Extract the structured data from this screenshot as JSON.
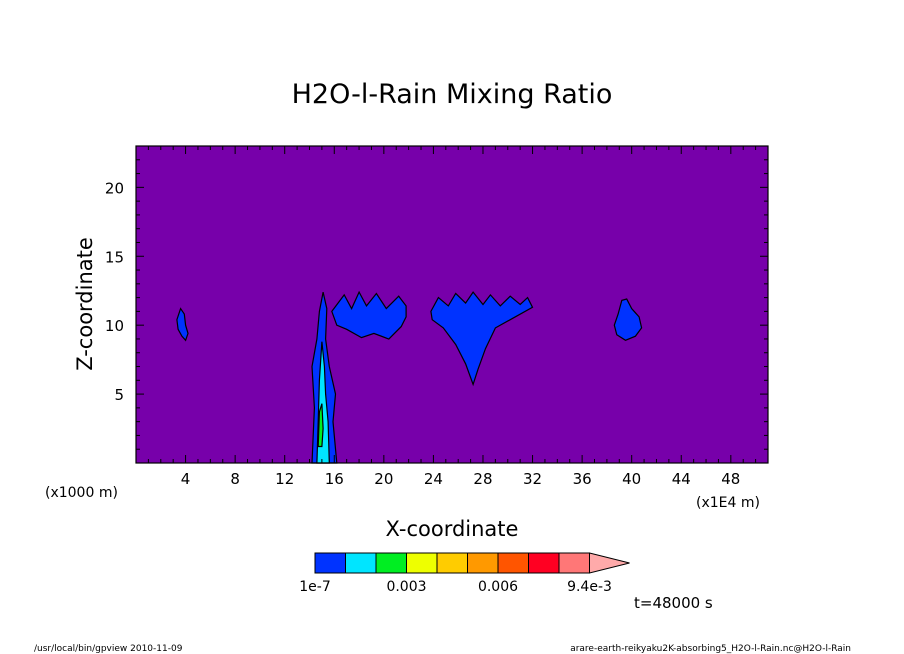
{
  "chart_data": {
    "type": "contour",
    "title": "H2O-l-Rain Mixing Ratio",
    "xlabel": "X-coordinate",
    "ylabel": "Z-coordinate",
    "x_unit_left": "(x1000 m)",
    "x_unit_right": "(x1E4 m)",
    "xlim": [
      0,
      51
    ],
    "ylim": [
      0,
      23
    ],
    "x_ticks": [
      4,
      8,
      12,
      16,
      20,
      24,
      28,
      32,
      36,
      40,
      44,
      48
    ],
    "y_ticks": [
      5,
      10,
      15,
      20
    ],
    "background_color": "#7700aa",
    "colorbar": {
      "colors": [
        "#0033ff",
        "#00e5ff",
        "#00ee22",
        "#eeff00",
        "#ffcc00",
        "#ff9900",
        "#ff5500",
        "#ff0022",
        "#ff7777"
      ],
      "extend_color": "#ffaaaa",
      "labels": [
        "1e-7",
        "0.003",
        "0.006",
        "9.4e-3"
      ]
    },
    "time_label": "t=48000 s",
    "regions": [
      {
        "name": "cloud-x4",
        "color": "#0033ff",
        "polygon": [
          [
            3.6,
            11.2
          ],
          [
            3.3,
            10.4
          ],
          [
            3.4,
            9.7
          ],
          [
            3.7,
            9.2
          ],
          [
            4.0,
            8.9
          ],
          [
            4.2,
            9.4
          ],
          [
            4.0,
            10.0
          ],
          [
            3.9,
            10.8
          ]
        ]
      },
      {
        "name": "column-x15",
        "color": "#0033ff",
        "polygon": [
          [
            14.2,
            0
          ],
          [
            14.4,
            4
          ],
          [
            14.2,
            7
          ],
          [
            14.6,
            9
          ],
          [
            14.8,
            11
          ],
          [
            15.1,
            12.4
          ],
          [
            15.4,
            11.2
          ],
          [
            15.3,
            9
          ],
          [
            15.6,
            7
          ],
          [
            16.1,
            5
          ],
          [
            15.9,
            3
          ],
          [
            16.2,
            0
          ]
        ]
      },
      {
        "name": "column-core",
        "color": "#00e5ff",
        "polygon": [
          [
            14.6,
            0
          ],
          [
            14.7,
            3
          ],
          [
            14.8,
            6
          ],
          [
            15.0,
            8.8
          ],
          [
            15.2,
            7
          ],
          [
            15.3,
            5
          ],
          [
            15.5,
            3
          ],
          [
            15.6,
            0
          ]
        ]
      },
      {
        "name": "column-green",
        "color": "#00ee22",
        "polygon": [
          [
            14.7,
            1.2
          ],
          [
            14.8,
            3.7
          ],
          [
            15.0,
            4.3
          ],
          [
            15.1,
            2.5
          ],
          [
            15.0,
            1.2
          ]
        ]
      },
      {
        "name": "anvil-x20",
        "color": "#0033ff",
        "polygon": [
          [
            15.8,
            11
          ],
          [
            16.8,
            12.2
          ],
          [
            17.4,
            11.2
          ],
          [
            18,
            12.4
          ],
          [
            18.6,
            11.4
          ],
          [
            19.4,
            12.3
          ],
          [
            20.2,
            11.2
          ],
          [
            21.2,
            12.1
          ],
          [
            21.8,
            11.4
          ],
          [
            21.8,
            10.6
          ],
          [
            21.4,
            9.9
          ],
          [
            20.4,
            9.0
          ],
          [
            19.2,
            9.4
          ],
          [
            18.2,
            9.1
          ],
          [
            17.0,
            9.7
          ],
          [
            16.2,
            10.0
          ]
        ]
      },
      {
        "name": "anvil-x27",
        "color": "#0033ff",
        "polygon": [
          [
            23.8,
            11.0
          ],
          [
            24.4,
            12.0
          ],
          [
            25.2,
            11.4
          ],
          [
            25.8,
            12.3
          ],
          [
            26.6,
            11.6
          ],
          [
            27.2,
            12.4
          ],
          [
            28.0,
            11.5
          ],
          [
            28.6,
            12.2
          ],
          [
            29.4,
            11.4
          ],
          [
            30.2,
            12.1
          ],
          [
            31.0,
            11.5
          ],
          [
            31.6,
            12.0
          ],
          [
            32.0,
            11.3
          ],
          [
            30.4,
            10.5
          ],
          [
            29.0,
            9.8
          ],
          [
            28.2,
            8.3
          ],
          [
            27.6,
            6.8
          ],
          [
            27.2,
            5.7
          ],
          [
            26.6,
            7.2
          ],
          [
            25.8,
            8.6
          ],
          [
            24.8,
            9.8
          ],
          [
            23.9,
            10.4
          ]
        ]
      },
      {
        "name": "cloud-x39",
        "color": "#0033ff",
        "polygon": [
          [
            39.2,
            11.8
          ],
          [
            38.9,
            10.8
          ],
          [
            38.6,
            10.0
          ],
          [
            38.8,
            9.3
          ],
          [
            39.5,
            8.9
          ],
          [
            40.3,
            9.2
          ],
          [
            40.8,
            9.8
          ],
          [
            40.6,
            10.6
          ],
          [
            40.0,
            11.2
          ],
          [
            39.6,
            11.9
          ]
        ]
      }
    ]
  },
  "footer": {
    "left": "/usr/local/bin/gpview  2010-11-09",
    "right": "arare-earth-reikyaku2K-absorbing5_H2O-l-Rain.nc@H2O-l-Rain"
  }
}
